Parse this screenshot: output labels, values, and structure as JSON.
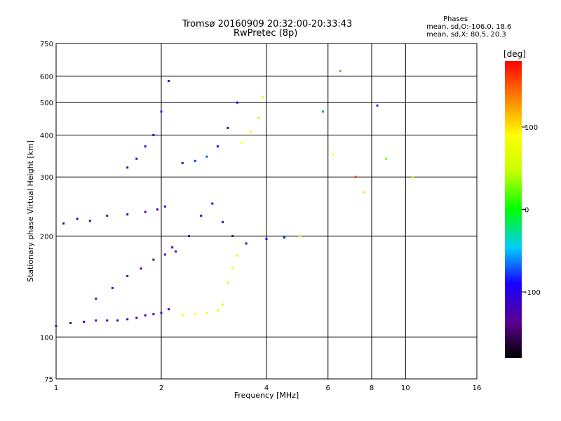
{
  "header": {
    "title_line1": "Tromsø 20160909 20:32:00-20:33:43",
    "title_line2": "RwPretec (8p)",
    "phases_label": "Phases",
    "stats_o": "mean, sd,O:-106.0, 18.6",
    "stats_x": "mean, sd,X:  80.5, 20.3"
  },
  "colorbar": {
    "unit_label": "[deg]",
    "tick_labels": [
      "100",
      "0",
      "-100"
    ],
    "tick_values": [
      100,
      0,
      -100
    ],
    "range": [
      -180,
      180
    ]
  },
  "chart_data": {
    "type": "scatter",
    "xlabel": "Frequency [MHz]",
    "ylabel": "Stationary phase Virtual Height [km]",
    "xscale": "log",
    "yscale": "log",
    "xlim": [
      1,
      16
    ],
    "ylim": [
      75,
      750
    ],
    "x_ticks": [
      1,
      2,
      4,
      6,
      8,
      10,
      16
    ],
    "x_tick_labels": [
      "1",
      "2",
      "4",
      "6",
      "8",
      "10",
      "16"
    ],
    "y_ticks": [
      75,
      100,
      200,
      300,
      400,
      500,
      600,
      750
    ],
    "y_tick_labels": [
      "75",
      "100",
      "200",
      "300",
      "400",
      "500",
      "600",
      "750"
    ],
    "grid": true,
    "series": [
      {
        "x": [
          1.0,
          1.1,
          1.2,
          1.3,
          1.4,
          1.5,
          1.6,
          1.7,
          1.8,
          1.9,
          2.0,
          2.1
        ],
        "y": [
          108,
          110,
          111,
          112,
          112,
          112,
          113,
          114,
          116,
          117,
          118,
          121
        ],
        "phase": [
          -130,
          -125,
          -130,
          -120,
          -135,
          -128,
          -125,
          -140,
          -118,
          -122,
          -130,
          -110
        ]
      },
      {
        "x": [
          1.05,
          1.15,
          1.25,
          1.4,
          1.6,
          1.8,
          1.95,
          2.05
        ],
        "y": [
          218,
          225,
          222,
          230,
          232,
          236,
          240,
          245
        ],
        "phase": [
          -115,
          -130,
          -120,
          -125,
          -110,
          -130,
          -118,
          -105
        ]
      },
      {
        "x": [
          1.3,
          1.45,
          1.6,
          1.75,
          1.9,
          2.05,
          2.15
        ],
        "y": [
          130,
          140,
          152,
          160,
          170,
          176,
          185
        ],
        "phase": [
          -130,
          -120,
          -110,
          -130,
          -140,
          -120,
          -110
        ]
      },
      {
        "x": [
          1.6,
          1.7,
          1.8,
          1.9,
          2.0,
          2.1
        ],
        "y": [
          320,
          340,
          370,
          400,
          470,
          580
        ],
        "phase": [
          -120,
          -110,
          -90,
          -100,
          -80,
          -95
        ]
      },
      {
        "x": [
          2.3,
          2.5,
          2.7,
          2.9,
          3.1,
          3.3
        ],
        "y": [
          330,
          335,
          345,
          370,
          420,
          500
        ],
        "phase": [
          -90,
          -80,
          -70,
          -95,
          -110,
          -100
        ]
      },
      {
        "x": [
          2.2,
          2.4,
          2.6,
          2.8,
          3.0,
          3.2
        ],
        "y": [
          180,
          200,
          230,
          250,
          220,
          200
        ],
        "phase": [
          -110,
          -100,
          -95,
          -105,
          -120,
          -115
        ]
      },
      {
        "x": [
          2.3,
          2.5,
          2.7,
          2.9,
          3.0,
          3.1,
          3.2,
          3.3
        ],
        "y": [
          116,
          117,
          118,
          120,
          125,
          145,
          160,
          175
        ],
        "phase": [
          85,
          90,
          80,
          75,
          60,
          55,
          70,
          60
        ]
      },
      {
        "x": [
          3.4,
          3.6,
          3.8,
          3.9
        ],
        "y": [
          380,
          410,
          450,
          520
        ],
        "phase": [
          90,
          80,
          100,
          70
        ]
      },
      {
        "x": [
          3.5,
          4.0,
          4.5,
          5.0
        ],
        "y": [
          190,
          196,
          198,
          200
        ],
        "phase": [
          -100,
          -90,
          -80,
          90
        ]
      },
      {
        "x": [
          5.8,
          6.2,
          6.5,
          7.2,
          7.6,
          8.3,
          8.8,
          10.5
        ],
        "y": [
          470,
          350,
          620,
          300,
          270,
          490,
          340,
          300
        ],
        "phase": [
          -60,
          90,
          140,
          160,
          100,
          -80,
          30,
          60
        ]
      }
    ]
  }
}
